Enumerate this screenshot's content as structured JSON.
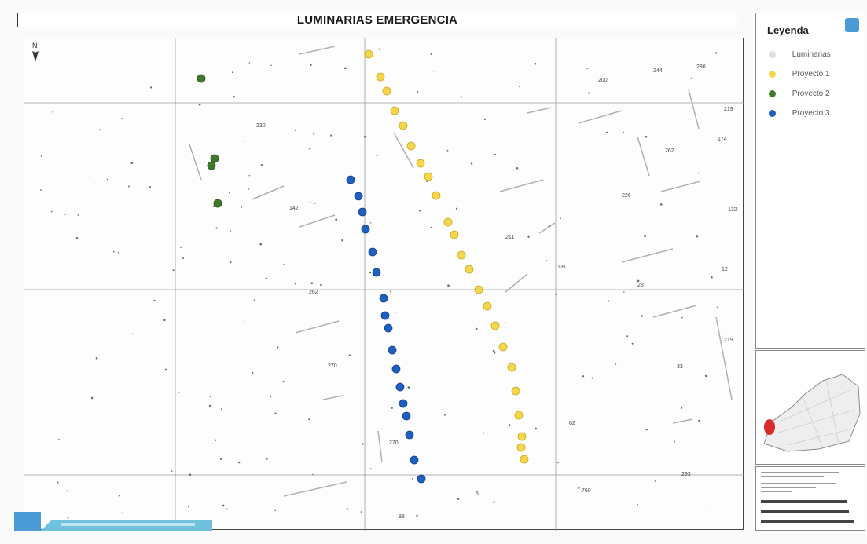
{
  "title": "LUMINARIAS EMERGENCIA",
  "north_arrow": "N",
  "legend": {
    "title": "Leyenda",
    "items": [
      {
        "label": "Luminarias",
        "color": "#e0e0e0"
      },
      {
        "label": "Proyecto 1",
        "color": "#f3d64b"
      },
      {
        "label": "Proyecto 2",
        "color": "#3f7a2c"
      },
      {
        "label": "Proyecto 3",
        "color": "#1f5fbf"
      }
    ]
  },
  "block_numbers": [
    "200",
    "244",
    "280",
    "219",
    "174",
    "262",
    "226",
    "132",
    "142",
    "211",
    "131",
    "28",
    "12",
    "262",
    "219",
    "270",
    "33",
    "270",
    "62",
    "293",
    "760",
    "88",
    "6",
    "230"
  ],
  "colors": {
    "proyecto1": "#f3d64b",
    "proyecto2": "#3f7a2c",
    "proyecto3": "#1f5fbf",
    "proyecto1_stroke": "#c9a81c",
    "proyecto2_stroke": "#244d18",
    "proyecto3_stroke": "#143f85",
    "inset_highlight": "#d82b2b",
    "logo": "#4a9bd6"
  }
}
